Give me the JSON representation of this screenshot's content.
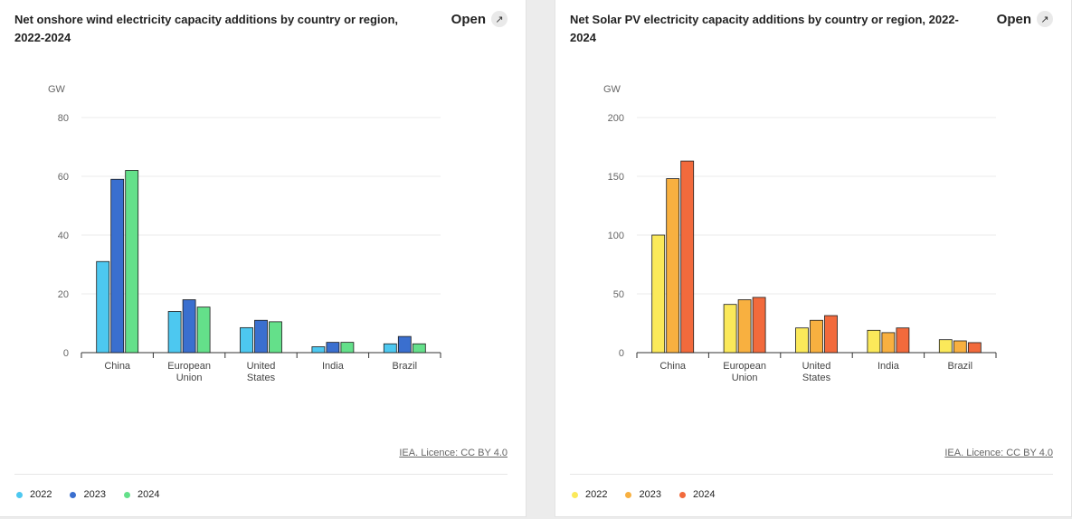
{
  "chart_data": [
    {
      "type": "bar",
      "title": "Net onshore wind electricity capacity additions by country or region, 2022-2024",
      "ylabel": "GW",
      "ylim": [
        0,
        80
      ],
      "yticks": [
        0,
        20,
        40,
        60,
        80
      ],
      "categories": [
        [
          "China"
        ],
        [
          "European",
          "Union"
        ],
        [
          "United",
          "States"
        ],
        [
          "India"
        ],
        [
          "Brazil"
        ]
      ],
      "series": [
        {
          "name": "2022",
          "color": "#4dc8f0",
          "values": [
            31,
            14,
            8.5,
            2,
            3
          ]
        },
        {
          "name": "2023",
          "color": "#3a6fcf",
          "values": [
            59,
            18,
            11,
            3.5,
            5.5
          ]
        },
        {
          "name": "2024",
          "color": "#64e08a",
          "values": [
            62,
            15.5,
            10.5,
            3.5,
            3
          ]
        }
      ],
      "grid": true,
      "legend_position": "bottom-left",
      "open_label": "Open",
      "source": "IEA. Licence: CC BY 4.0"
    },
    {
      "type": "bar",
      "title": "Net Solar PV electricity capacity additions by country or region, 2022-2024",
      "ylabel": "GW",
      "ylim": [
        0,
        200
      ],
      "yticks": [
        0,
        50,
        100,
        150,
        200
      ],
      "categories": [
        [
          "China"
        ],
        [
          "European",
          "Union"
        ],
        [
          "United",
          "States"
        ],
        [
          "India"
        ],
        [
          "Brazil"
        ]
      ],
      "series": [
        {
          "name": "2022",
          "color": "#fbe95a",
          "values": [
            100,
            41,
            21,
            19,
            11
          ]
        },
        {
          "name": "2023",
          "color": "#f8b040",
          "values": [
            148,
            45,
            27.5,
            17,
            10
          ]
        },
        {
          "name": "2024",
          "color": "#f26a3c",
          "values": [
            163,
            47,
            31.5,
            21,
            8.5
          ]
        }
      ],
      "grid": true,
      "legend_position": "bottom-left",
      "open_label": "Open",
      "source": "IEA. Licence: CC BY 4.0"
    }
  ]
}
